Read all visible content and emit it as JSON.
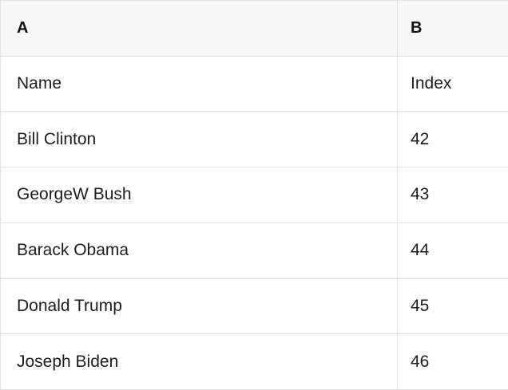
{
  "colors": {
    "header_bg": "#f7f7f7",
    "grid_border": "#e2e2e2",
    "text": "#1d1d1f",
    "body_bg": "#ffffff"
  },
  "spreadsheet": {
    "column_headers": [
      "A",
      "B"
    ],
    "field_row": {
      "name_label": "Name",
      "index_label": "Index"
    },
    "rows": [
      {
        "name": "Bill Clinton",
        "index": "42"
      },
      {
        "name": "GeorgeW Bush",
        "index": "43"
      },
      {
        "name": "Barack Obama",
        "index": "44"
      },
      {
        "name": "Donald Trump",
        "index": "45"
      },
      {
        "name": "Joseph Biden",
        "index": "46"
      }
    ]
  }
}
